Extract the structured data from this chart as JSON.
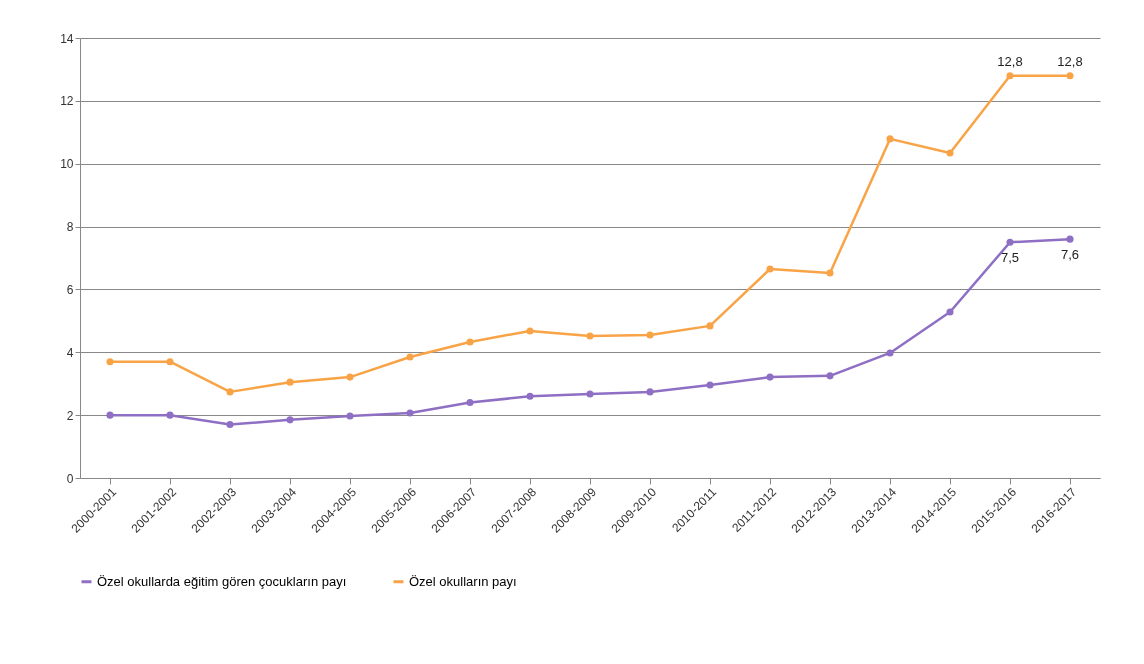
{
  "chart_data": {
    "type": "line",
    "categories": [
      "2000-2001",
      "2001-2002",
      "2002-2003",
      "2003-2004",
      "2004-2005",
      "2005-2006",
      "2006-2007",
      "2007-2008",
      "2008-2009",
      "2009-2010",
      "2010-2011",
      "2011-2012",
      "2012-2013",
      "2013-2014",
      "2014-2015",
      "2015-2016",
      "2016-2017"
    ],
    "series": [
      {
        "name": "Özel okullarda eğitim gören çocukların payı",
        "color": "#8e6fc4",
        "values": [
          2.0,
          2.0,
          1.7,
          1.85,
          1.97,
          2.07,
          2.4,
          2.6,
          2.67,
          2.74,
          2.96,
          3.21,
          3.25,
          3.98,
          5.28,
          7.5,
          7.6
        ],
        "value_labels": [
          null,
          null,
          null,
          null,
          null,
          null,
          null,
          null,
          null,
          null,
          null,
          null,
          null,
          null,
          null,
          "7,5",
          "7,6"
        ]
      },
      {
        "name": "Özel okulların payı",
        "color": "#f9a347",
        "values": [
          3.7,
          3.7,
          2.74,
          3.05,
          3.21,
          3.85,
          4.33,
          4.68,
          4.52,
          4.55,
          4.84,
          6.65,
          6.52,
          10.79,
          10.34,
          12.8,
          12.8
        ],
        "value_labels": [
          null,
          null,
          null,
          null,
          null,
          null,
          null,
          null,
          null,
          null,
          null,
          null,
          null,
          null,
          null,
          "12,8",
          "12,8"
        ]
      }
    ],
    "ylim": [
      0,
      14
    ],
    "yticks": [
      0,
      2,
      4,
      6,
      8,
      10,
      12,
      14
    ],
    "grid": "y",
    "legend": "bottom left",
    "marker": "circle",
    "line_style": "solid"
  }
}
